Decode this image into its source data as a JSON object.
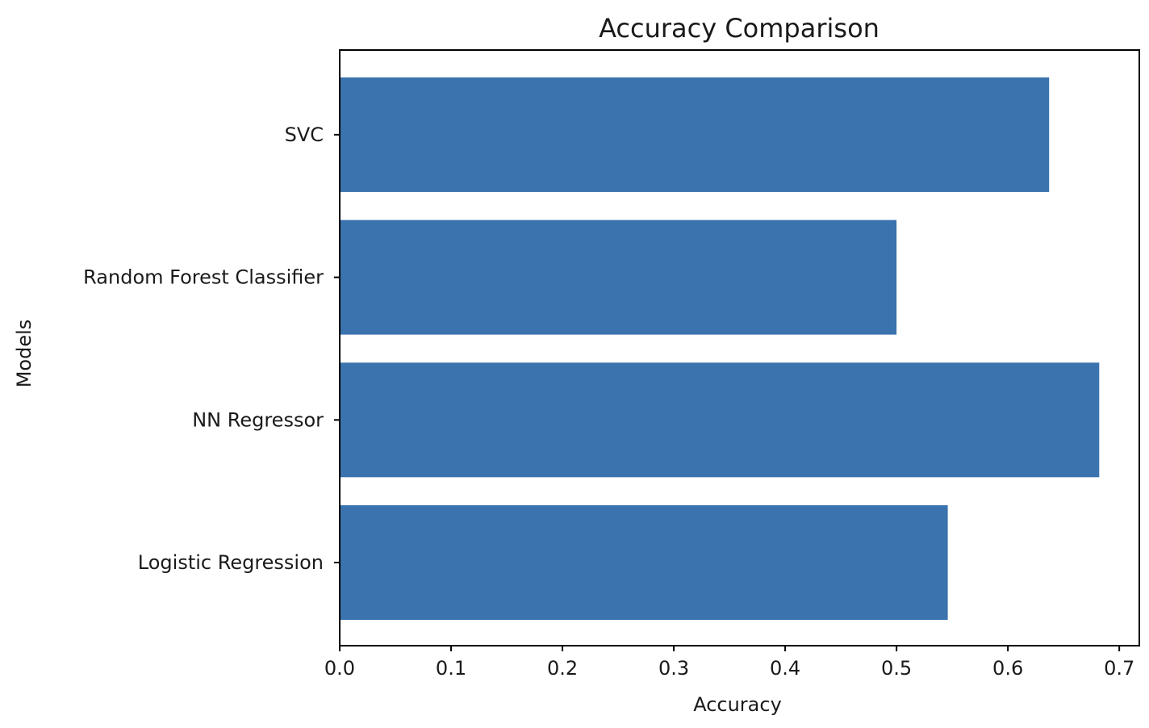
{
  "colors": {
    "bar": "#3a73ad",
    "axis": "#000000",
    "text": "#1a1a1a"
  },
  "chart_data": {
    "type": "bar",
    "orientation": "horizontal",
    "title": "Accuracy Comparison",
    "xlabel": "Accuracy",
    "ylabel": "Models",
    "categories": [
      "Logistic Regression",
      "NN Regressor",
      "Random Forest Classifier",
      "SVC"
    ],
    "values": [
      0.546,
      0.682,
      0.5,
      0.637
    ],
    "xlim": [
      0,
      0.718
    ],
    "xticks": [
      0.0,
      0.1,
      0.2,
      0.3,
      0.4,
      0.5,
      0.6,
      0.7
    ],
    "xtick_labels": [
      "0.0",
      "0.1",
      "0.2",
      "0.3",
      "0.4",
      "0.5",
      "0.6",
      "0.7"
    ],
    "grid": false,
    "legend": "none"
  }
}
